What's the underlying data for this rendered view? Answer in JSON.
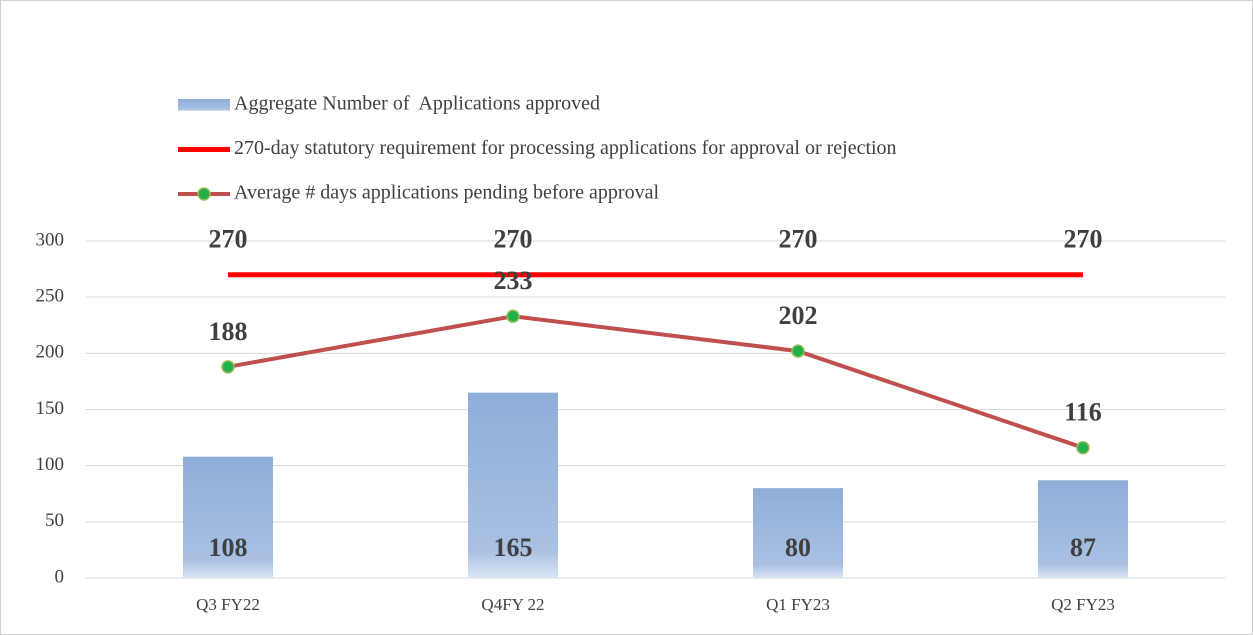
{
  "chart_data": {
    "type": "bar",
    "categories": [
      "Q3 FY22",
      "Q4FY 22",
      "Q1 FY23",
      "Q2 FY23"
    ],
    "series": [
      {
        "name": "Aggregate Number of  Applications approved",
        "type": "bar",
        "color": "#8eaed8",
        "values": [
          108,
          165,
          80,
          87
        ]
      },
      {
        "name": "270-day statutory requirement for processing applications for approval or rejection",
        "type": "line",
        "color": "#ff0000",
        "marker": false,
        "values": [
          270,
          270,
          270,
          270
        ]
      },
      {
        "name": "Average # days applications pending before approval",
        "type": "line",
        "color": "#c0504d",
        "marker": true,
        "marker_color": "#22b04b",
        "values": [
          188,
          233,
          202,
          116
        ]
      }
    ],
    "ylim": [
      0,
      300
    ],
    "yticks": [
      0,
      50,
      100,
      150,
      200,
      250,
      300
    ],
    "grid": true,
    "legend": "top-left"
  }
}
